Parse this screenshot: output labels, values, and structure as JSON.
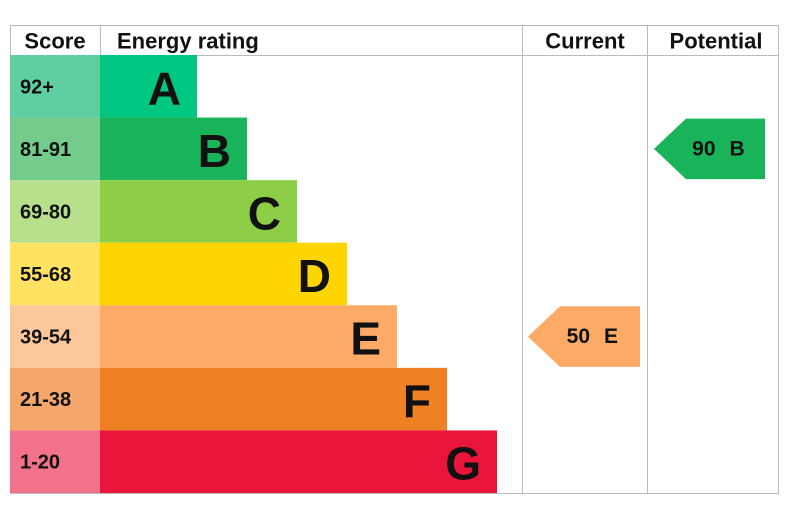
{
  "header": {
    "score": "Score",
    "rating": "Energy rating",
    "current": "Current",
    "potential": "Potential"
  },
  "bands": [
    {
      "range": "92+",
      "letter": "A"
    },
    {
      "range": "81-91",
      "letter": "B"
    },
    {
      "range": "69-80",
      "letter": "C"
    },
    {
      "range": "55-68",
      "letter": "D"
    },
    {
      "range": "39-54",
      "letter": "E"
    },
    {
      "range": "21-38",
      "letter": "F"
    },
    {
      "range": "1-20",
      "letter": "G"
    }
  ],
  "current": {
    "score": 50,
    "rating": "E"
  },
  "potential": {
    "score": 90,
    "rating": "B"
  }
}
